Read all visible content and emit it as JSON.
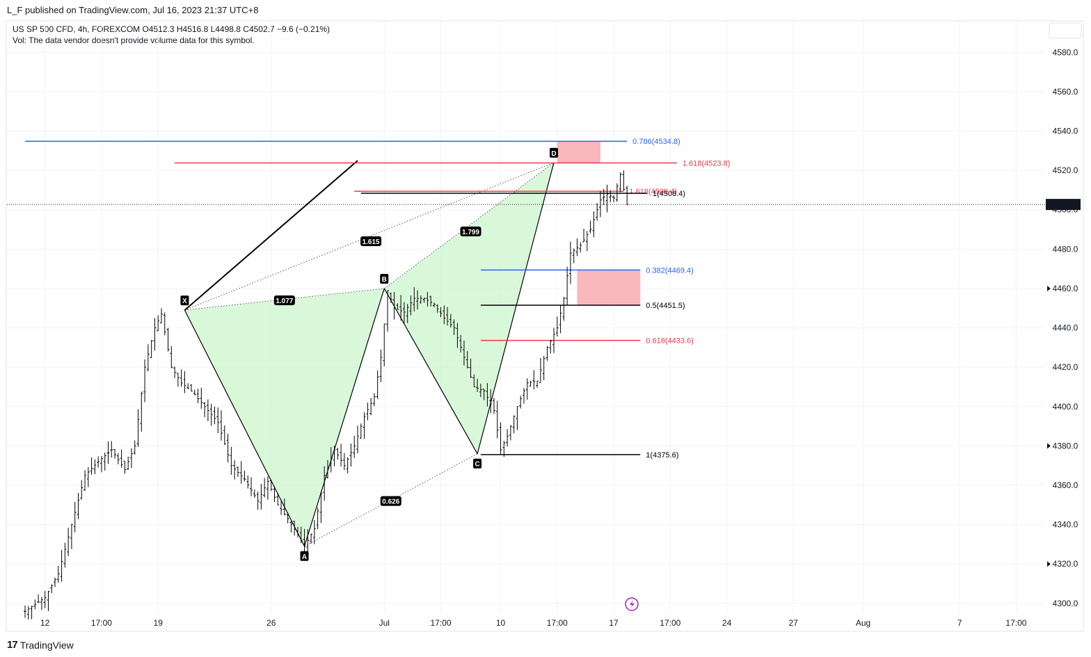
{
  "header": {
    "publish": "L_F published on TradingView.com, Jul 16, 2023 21:37 UTC+8",
    "symbol_line": "US SP 500 CFD, 4h, FOREXCOM  O4512.3  H4516.8  L4498.8  C4502.7  −9.6 (−0.21%)",
    "volume_note": "Vol: The data vendor doesn't provide volume data for this symbol."
  },
  "watermark": "TradingView",
  "colors": {
    "blue": "#2962ff",
    "red": "#f23645",
    "black": "#000000",
    "pattern_fill": "#ccf5cc",
    "zone_fill": "#f8b4b9",
    "purple": "#9c27b0"
  },
  "chart_data": {
    "type": "candlestick",
    "ylim": [
      4295,
      4596
    ],
    "x_unit": "4h bars",
    "y_ticks": [
      4300,
      4320,
      4340,
      4360,
      4380,
      4400,
      4420,
      4440,
      4460,
      4480,
      4500,
      4520,
      4540,
      4560,
      4580
    ],
    "y_tick_labels": [
      "4300.0",
      "4320.0",
      "4340.0",
      "4360.0",
      "4380.0",
      "4400.0",
      "4420.0",
      "4440.0",
      "4460.0",
      "4480.0",
      "4500.0",
      "4520.0",
      "4540.0",
      "4560.0",
      "4580.0"
    ],
    "x_ticks": [
      {
        "bar": 6,
        "label": "12"
      },
      {
        "bar": 23,
        "label": "17:00"
      },
      {
        "bar": 40,
        "label": "19"
      },
      {
        "bar": 74,
        "label": "26"
      },
      {
        "bar": 108,
        "label": "Jul"
      },
      {
        "bar": 125,
        "label": "17:00"
      },
      {
        "bar": 143,
        "label": "10"
      },
      {
        "bar": 160,
        "label": "17:00"
      },
      {
        "bar": 177,
        "label": "17"
      },
      {
        "bar": 194,
        "label": "17:00"
      },
      {
        "bar": 211,
        "label": "24"
      },
      {
        "bar": 231,
        "label": "27"
      },
      {
        "bar": 252,
        "label": "Aug"
      },
      {
        "bar": 281,
        "label": "7"
      },
      {
        "bar": 298,
        "label": "17:00"
      }
    ],
    "last_price": 4502.7,
    "last_price_label": "4502.7",
    "close_path": [
      [
        0,
        4296
      ],
      [
        6,
        4303
      ],
      [
        10,
        4315
      ],
      [
        14,
        4340
      ],
      [
        18,
        4365
      ],
      [
        22,
        4372
      ],
      [
        26,
        4378
      ],
      [
        30,
        4368
      ],
      [
        33,
        4380
      ],
      [
        36,
        4420
      ],
      [
        39,
        4440
      ],
      [
        41,
        4447
      ],
      [
        44,
        4420
      ],
      [
        47,
        4412
      ],
      [
        50,
        4408
      ],
      [
        54,
        4400
      ],
      [
        58,
        4392
      ],
      [
        62,
        4370
      ],
      [
        66,
        4363
      ],
      [
        70,
        4352
      ],
      [
        73,
        4362
      ],
      [
        76,
        4350
      ],
      [
        79,
        4343
      ],
      [
        82,
        4335
      ],
      [
        84,
        4329
      ],
      [
        87,
        4338
      ],
      [
        90,
        4365
      ],
      [
        93,
        4378
      ],
      [
        96,
        4370
      ],
      [
        99,
        4380
      ],
      [
        102,
        4395
      ],
      [
        105,
        4405
      ],
      [
        107,
        4425
      ],
      [
        109,
        4459
      ],
      [
        111,
        4450
      ],
      [
        114,
        4448
      ],
      [
        117,
        4455
      ],
      [
        120,
        4455
      ],
      [
        123,
        4452
      ],
      [
        126,
        4445
      ],
      [
        129,
        4440
      ],
      [
        132,
        4425
      ],
      [
        135,
        4410
      ],
      [
        138,
        4408
      ],
      [
        141,
        4398
      ],
      [
        143,
        4378
      ],
      [
        145,
        4385
      ],
      [
        148,
        4400
      ],
      [
        151,
        4412
      ],
      [
        154,
        4413
      ],
      [
        157,
        4430
      ],
      [
        160,
        4440
      ],
      [
        162,
        4455
      ],
      [
        164,
        4478
      ],
      [
        167,
        4482
      ],
      [
        170,
        4490
      ],
      [
        173,
        4505
      ],
      [
        175,
        4508
      ],
      [
        177,
        4506
      ],
      [
        179,
        4518
      ],
      [
        181,
        4502.7
      ]
    ],
    "harmonic_pattern": {
      "points": [
        {
          "label": "X",
          "bar": 48,
          "price": 4449
        },
        {
          "label": "A",
          "bar": 84,
          "price": 4329
        },
        {
          "label": "B",
          "bar": 108,
          "price": 4460
        },
        {
          "label": "C",
          "bar": 136,
          "price": 4376
        },
        {
          "label": "D",
          "bar": 159,
          "price": 4524
        }
      ],
      "ratios": [
        {
          "label": "1.077",
          "bar": 78,
          "price": 4454
        },
        {
          "label": "1.615",
          "bar": 104,
          "price": 4484
        },
        {
          "label": "1.799",
          "bar": 134,
          "price": 4489
        },
        {
          "label": "0.626",
          "bar": 110,
          "price": 4352
        }
      ]
    },
    "trend_line": {
      "from": {
        "bar": 48,
        "price": 4449
      },
      "to": {
        "bar": 100,
        "price": 4525
      }
    },
    "levels": [
      {
        "label": "0.786(4534.8)",
        "price": 4534.8,
        "color": "blue",
        "from": 0,
        "to": 181
      },
      {
        "label": "1.618(4523.8)",
        "price": 4523.8,
        "color": "red",
        "from": 45,
        "to": 196
      },
      {
        "label": "1.618(4509.4)",
        "price": 4509.4,
        "color": "red",
        "from": 99,
        "to": 180
      },
      {
        "label": "1(4508.4)",
        "price": 4508.4,
        "color": "black",
        "from": 101,
        "to": 187
      },
      {
        "label": "0.382(4469.4)",
        "price": 4469.4,
        "color": "blue",
        "from": 137,
        "to": 185
      },
      {
        "label": "0.5(4451.5)",
        "price": 4451.5,
        "color": "black",
        "from": 137,
        "to": 185
      },
      {
        "label": "0.618(4433.6)",
        "price": 4433.6,
        "color": "red",
        "from": 137,
        "to": 185
      },
      {
        "label": "1(4375.6)",
        "price": 4375.6,
        "color": "black",
        "from": 137,
        "to": 185
      }
    ],
    "zones": [
      {
        "bar_from": 160,
        "bar_to": 173,
        "price_high": 4535,
        "price_low": 4524
      },
      {
        "bar_from": 166,
        "bar_to": 185,
        "price_high": 4469.4,
        "price_low": 4451.5
      }
    ]
  }
}
